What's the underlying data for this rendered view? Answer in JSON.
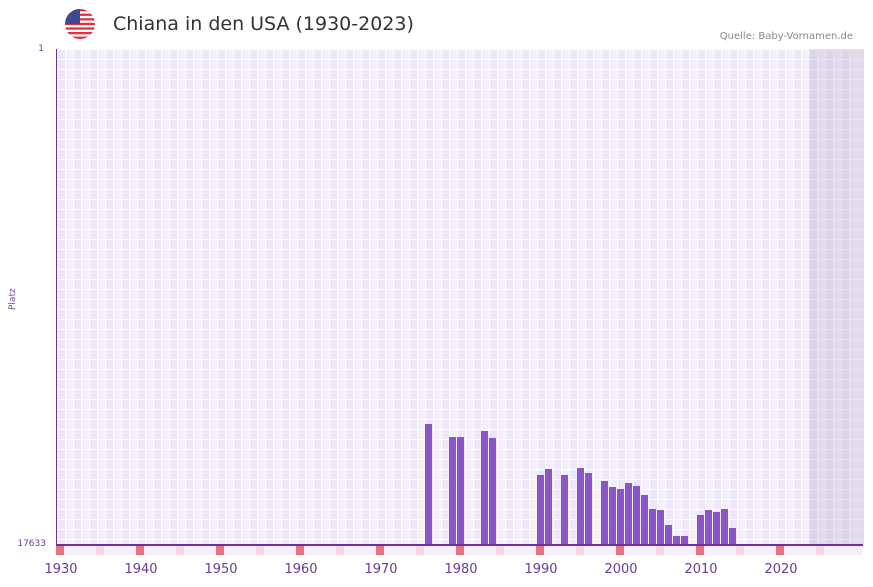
{
  "header": {
    "title": "Chiana in den USA (1930-2023)",
    "source": "Quelle: Baby-Vornamen.de",
    "flag_icon": "us-flag-icon"
  },
  "colors": {
    "bar": "#8a55c7",
    "axis": "#6a2fa0",
    "decade_mark": "#e57380",
    "half_decade_mark": "#f5d6e0"
  },
  "axis": {
    "y_top_label": "1",
    "y_bottom_label": "17633",
    "y_title": "Platz"
  },
  "chart_data": {
    "type": "bar",
    "title": "Chiana in den USA (1930-2023)",
    "xlabel": "",
    "ylabel": "Platz",
    "ylim": [
      17633,
      1
    ],
    "y_inverted": true,
    "xlim": [
      1928,
      2028
    ],
    "x_ticks": [
      "1930",
      "1940",
      "1950",
      "1960",
      "1970",
      "1980",
      "1990",
      "2000",
      "2010",
      "2020"
    ],
    "categories": [
      1974,
      1977,
      1978,
      1981,
      1982,
      1988,
      1989,
      1991,
      1993,
      1994,
      1996,
      1997,
      1998,
      1999,
      2000,
      2001,
      2002,
      2003,
      2004,
      2005,
      2006,
      2008,
      2009,
      2010,
      2011,
      2012
    ],
    "values": [
      13315,
      13777,
      13777,
      13564,
      13812,
      15127,
      14914,
      15127,
      14878,
      15056,
      15340,
      15553,
      15624,
      15411,
      15518,
      15838,
      16335,
      16406,
      16904,
      17295,
      17295,
      16549,
      16406,
      16442,
      16335,
      17011
    ],
    "grid": true,
    "legend": null
  }
}
